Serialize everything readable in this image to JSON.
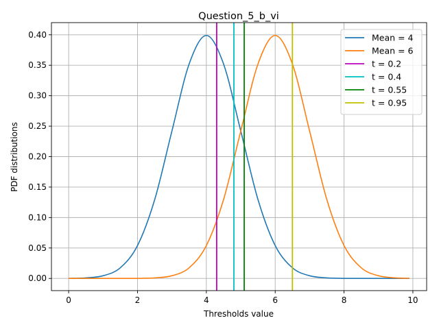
{
  "chart_data": {
    "type": "line",
    "title": "Question_5_b_vi",
    "xlabel": "Thresholds value",
    "ylabel": "PDF distributions",
    "xlim": [
      -0.5,
      10.4
    ],
    "ylim": [
      -0.02,
      0.42
    ],
    "xticks": [
      0,
      2,
      4,
      6,
      8,
      10
    ],
    "xtick_labels": [
      "0",
      "2",
      "4",
      "6",
      "8",
      "10"
    ],
    "yticks": [
      0.0,
      0.05,
      0.1,
      0.15,
      0.2,
      0.25,
      0.3,
      0.35,
      0.4
    ],
    "ytick_labels": [
      "0.00",
      "0.05",
      "0.10",
      "0.15",
      "0.20",
      "0.25",
      "0.30",
      "0.35",
      "0.40"
    ],
    "grid": true,
    "legend_position": "upper right",
    "curve_x": [
      0.0,
      0.5,
      1.0,
      1.5,
      2.0,
      2.5,
      3.0,
      3.5,
      4.0,
      4.5,
      5.0,
      5.5,
      6.0,
      6.5,
      7.0,
      7.5,
      8.0,
      8.5,
      9.0,
      9.5,
      9.9
    ],
    "series": [
      {
        "name": "Mean = 4",
        "color": "#1f77b4",
        "y": [
          0.0001,
          0.0009,
          0.0044,
          0.0175,
          0.054,
          0.1295,
          0.242,
          0.3521,
          0.3989,
          0.3521,
          0.242,
          0.1295,
          0.054,
          0.0175,
          0.0044,
          0.0009,
          0.0001,
          0.0,
          0.0,
          0.0,
          0.0
        ]
      },
      {
        "name": "Mean = 6",
        "color": "#ff7f0e",
        "y": [
          0.0,
          0.0,
          0.0,
          0.0,
          0.0001,
          0.0009,
          0.0044,
          0.0175,
          0.054,
          0.1295,
          0.242,
          0.3521,
          0.3989,
          0.3521,
          0.242,
          0.1295,
          0.054,
          0.0175,
          0.0044,
          0.0009,
          0.0002
        ]
      }
    ],
    "thresholds": [
      {
        "name": "t = 0.2",
        "x": 4.3,
        "color": "#bf00bf"
      },
      {
        "name": "t = 0.4",
        "x": 4.8,
        "color": "#00bfbf"
      },
      {
        "name": "t = 0.55",
        "x": 5.1,
        "color": "#008000"
      },
      {
        "name": "t = 0.95",
        "x": 6.5,
        "color": "#bfbf00"
      }
    ]
  }
}
